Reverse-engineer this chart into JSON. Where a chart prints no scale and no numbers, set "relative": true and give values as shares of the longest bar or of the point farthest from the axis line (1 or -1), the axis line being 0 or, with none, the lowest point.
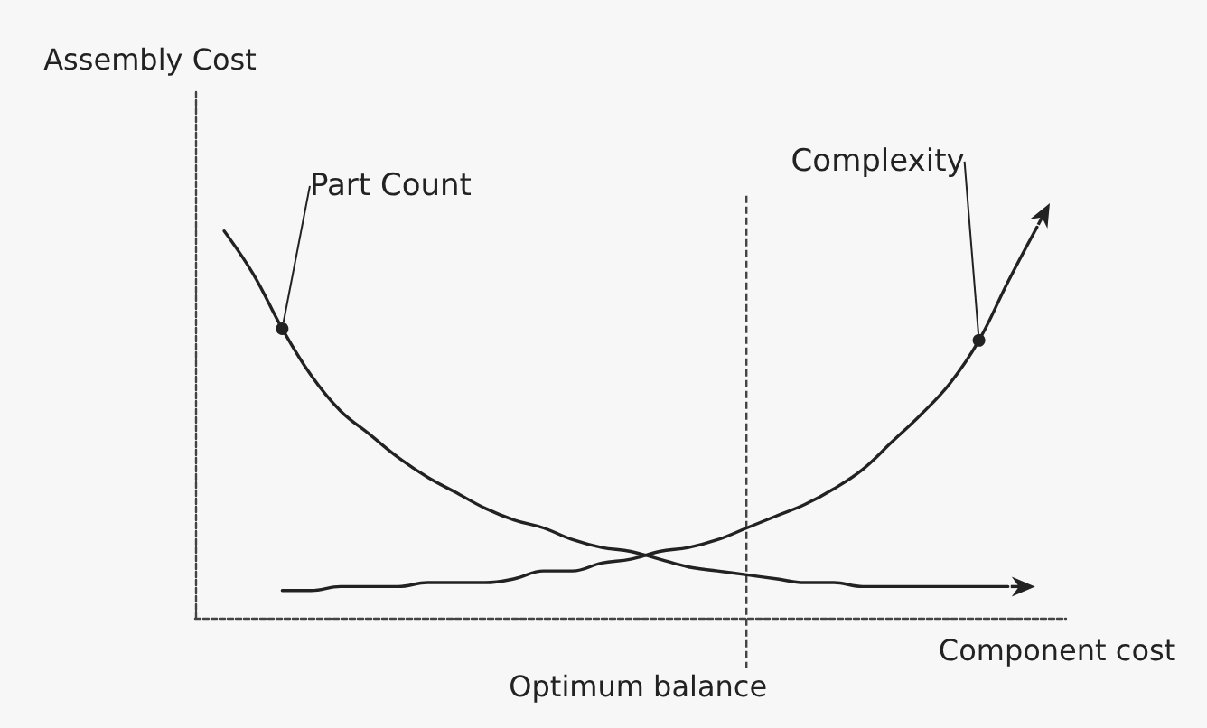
{
  "chart_data": {
    "type": "line",
    "relative": true,
    "xlabel": "Component cost",
    "legend": false,
    "grid": false,
    "categories": [
      null,
      null,
      null,
      null,
      null,
      null,
      null,
      null,
      null,
      null,
      null,
      null,
      null,
      null,
      null,
      null,
      null,
      null,
      null,
      null,
      null,
      null,
      null,
      null,
      null,
      null,
      null,
      null,
      null,
      null,
      null
    ],
    "series": [
      {
        "name": "Part Count",
        "color": "#222222",
        "values": [
          null,
          0.99,
          0.88,
          0.74,
          0.62,
          0.53,
          0.47,
          0.41,
          0.36,
          0.32,
          0.28,
          0.25,
          0.23,
          0.2,
          0.18,
          0.17,
          0.15,
          0.13,
          0.12,
          0.11,
          0.1,
          0.09,
          0.09,
          0.08,
          0.08,
          0.08,
          0.08,
          0.08,
          0.08,
          null,
          null
        ]
      },
      {
        "name": "Complexity",
        "color": "#222222",
        "values": [
          null,
          null,
          null,
          0.07,
          0.07,
          0.08,
          0.08,
          0.08,
          0.09,
          0.09,
          0.09,
          0.1,
          0.12,
          0.12,
          0.14,
          0.15,
          0.17,
          0.18,
          0.2,
          0.23,
          0.26,
          0.29,
          0.33,
          0.38,
          0.45,
          0.52,
          0.6,
          0.71,
          0.86,
          1,
          null
        ]
      }
    ],
    "annotations": [
      "Assembly Cost",
      "Optimum balance"
    ]
  }
}
